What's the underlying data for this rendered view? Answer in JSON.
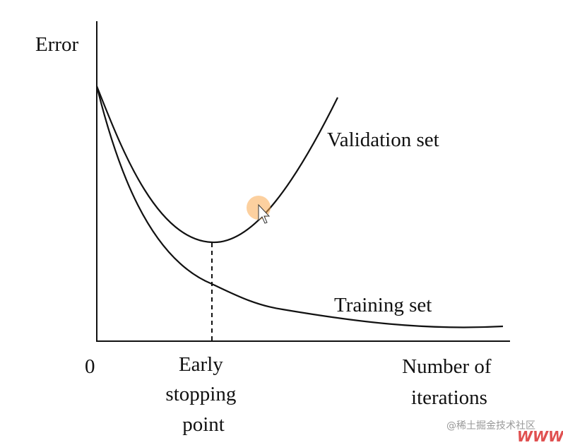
{
  "axes": {
    "y_label": "Error",
    "origin": "0",
    "x_label": [
      "Number of",
      "iterations"
    ]
  },
  "curves": [
    {
      "label": "Validation set"
    },
    {
      "label": "Training set"
    }
  ],
  "marker": {
    "label": [
      "Early",
      "stopping",
      "point"
    ]
  },
  "watermark": "@稀土掘金技术社区",
  "logo": "WWW"
}
